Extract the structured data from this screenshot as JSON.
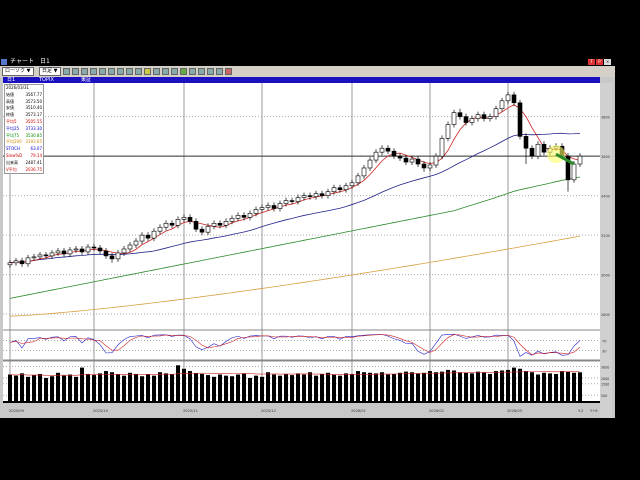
{
  "window": {
    "title": "チャート　日1",
    "close_labels": [
      "T",
      "P"
    ]
  },
  "toolbar": {
    "chart_type": "ローソク",
    "period": "日足"
  },
  "header": {
    "tab": "日1",
    "symbol": "TOPIX",
    "market": "東証"
  },
  "info_panel": {
    "date": "2026/03/31",
    "rows": [
      {
        "label": "始値",
        "value": "3567.77",
        "color": "#000000"
      },
      {
        "label": "高値",
        "value": "3573.50",
        "color": "#000000"
      },
      {
        "label": "安値",
        "value": "3510.40",
        "color": "#000000"
      },
      {
        "label": "終値",
        "value": "3573.17",
        "color": "#000000"
      },
      {
        "label": "平均5",
        "value": "3505.55",
        "color": "#cc0000"
      },
      {
        "label": "平均25",
        "value": "3733.30",
        "color": "#0000cc"
      },
      {
        "label": "平均75",
        "value": "3530.85",
        "color": "#008800"
      },
      {
        "label": "平均200",
        "value": "3193.65",
        "color": "#cc8800"
      },
      {
        "label": "STOCH",
        "value": "63.07",
        "color": "#0000cc"
      },
      {
        "label": "Slow%D",
        "value": "79.14",
        "color": "#cc0000"
      },
      {
        "label": "出来高",
        "value": "2487.41",
        "color": "#000000"
      },
      {
        "label": "V平均",
        "value": "2036.75",
        "color": "#cc0000"
      }
    ]
  },
  "chart_data": {
    "type": "candlestick",
    "price_ticks": [
      "3800",
      "3600",
      "3400",
      "3200",
      "3000",
      "2800"
    ],
    "price_range": [
      2730,
      3960
    ],
    "current_price_line": 3600,
    "stoch_ticks": [
      "70",
      "30"
    ],
    "volume_ticks": [
      "3000",
      "2000",
      "1500",
      "500"
    ],
    "x_labels": [
      "2025/09",
      "2025/10",
      "2025/11",
      "2025/12",
      "2026/01",
      "2026/02",
      "2026/03"
    ],
    "x_label_index": [
      0,
      14,
      29,
      42,
      57,
      70,
      83
    ],
    "right_labels": [
      "Y-2",
      "Y+6"
    ],
    "ma200_range": [
      2790,
      3195
    ],
    "ma75_start": 2880,
    "open": [
      3050,
      3060,
      3070,
      3055,
      3085,
      3090,
      3100,
      3095,
      3110,
      3120,
      3105,
      3125,
      3130,
      3115,
      3140,
      3135,
      3120,
      3095,
      3080,
      3110,
      3130,
      3150,
      3170,
      3200,
      3185,
      3220,
      3240,
      3260,
      3250,
      3280,
      3290,
      3270,
      3230,
      3215,
      3245,
      3260,
      3250,
      3270,
      3285,
      3300,
      3290,
      3310,
      3330,
      3340,
      3350,
      3335,
      3360,
      3375,
      3370,
      3390,
      3400,
      3395,
      3410,
      3400,
      3420,
      3440,
      3430,
      3450,
      3465,
      3500,
      3540,
      3580,
      3620,
      3640,
      3625,
      3600,
      3590,
      3570,
      3585,
      3560,
      3540,
      3555,
      3600,
      3690,
      3760,
      3820,
      3800,
      3770,
      3790,
      3810,
      3790,
      3800,
      3840,
      3880,
      3910,
      3870,
      3700,
      3640,
      3600,
      3660,
      3620,
      3640,
      3650,
      3600,
      3480,
      3560
    ],
    "high": [
      3075,
      3085,
      3085,
      3100,
      3105,
      3115,
      3115,
      3125,
      3135,
      3135,
      3140,
      3145,
      3145,
      3155,
      3155,
      3150,
      3135,
      3110,
      3125,
      3145,
      3165,
      3185,
      3215,
      3215,
      3235,
      3255,
      3275,
      3275,
      3295,
      3305,
      3305,
      3285,
      3245,
      3260,
      3275,
      3275,
      3285,
      3300,
      3315,
      3315,
      3325,
      3345,
      3355,
      3365,
      3365,
      3375,
      3390,
      3390,
      3405,
      3415,
      3415,
      3425,
      3425,
      3435,
      3455,
      3455,
      3465,
      3480,
      3515,
      3555,
      3595,
      3635,
      3655,
      3655,
      3640,
      3615,
      3605,
      3600,
      3600,
      3575,
      3570,
      3615,
      3705,
      3775,
      3835,
      3840,
      3815,
      3805,
      3825,
      3825,
      3815,
      3855,
      3895,
      3925,
      3925,
      3885,
      3715,
      3655,
      3675,
      3675,
      3655,
      3665,
      3665,
      3615,
      3575,
      3615
    ],
    "low": [
      3035,
      3045,
      3040,
      3040,
      3070,
      3075,
      3080,
      3080,
      3095,
      3090,
      3090,
      3110,
      3100,
      3100,
      3120,
      3105,
      3080,
      3060,
      3065,
      3095,
      3115,
      3135,
      3155,
      3170,
      3170,
      3205,
      3225,
      3235,
      3235,
      3265,
      3255,
      3215,
      3200,
      3200,
      3230,
      3235,
      3235,
      3255,
      3270,
      3275,
      3275,
      3295,
      3315,
      3325,
      3320,
      3320,
      3345,
      3355,
      3355,
      3375,
      3380,
      3380,
      3385,
      3385,
      3405,
      3415,
      3415,
      3435,
      3450,
      3485,
      3525,
      3565,
      3605,
      3610,
      3585,
      3575,
      3555,
      3555,
      3545,
      3520,
      3525,
      3540,
      3585,
      3675,
      3745,
      3785,
      3755,
      3755,
      3775,
      3775,
      3775,
      3785,
      3825,
      3865,
      3855,
      3685,
      3560,
      3585,
      3585,
      3605,
      3605,
      3625,
      3585,
      3420,
      3465,
      3545
    ],
    "close": [
      3060,
      3070,
      3055,
      3085,
      3090,
      3100,
      3095,
      3110,
      3120,
      3105,
      3125,
      3130,
      3115,
      3140,
      3135,
      3120,
      3095,
      3080,
      3110,
      3130,
      3150,
      3170,
      3200,
      3185,
      3220,
      3240,
      3260,
      3250,
      3280,
      3290,
      3270,
      3230,
      3215,
      3245,
      3260,
      3250,
      3270,
      3285,
      3300,
      3290,
      3310,
      3330,
      3340,
      3350,
      3335,
      3360,
      3375,
      3370,
      3390,
      3400,
      3395,
      3410,
      3400,
      3420,
      3440,
      3430,
      3450,
      3465,
      3500,
      3540,
      3580,
      3620,
      3640,
      3625,
      3600,
      3590,
      3570,
      3585,
      3560,
      3540,
      3555,
      3600,
      3690,
      3760,
      3820,
      3800,
      3770,
      3790,
      3810,
      3790,
      3800,
      3840,
      3880,
      3910,
      3870,
      3700,
      3640,
      3600,
      3660,
      3620,
      3640,
      3650,
      3600,
      3480,
      3560,
      3600
    ],
    "volume": [
      2300,
      2200,
      2400,
      2100,
      2250,
      2350,
      2000,
      2150,
      2450,
      2200,
      2300,
      2100,
      2900,
      2350,
      2250,
      2400,
      2600,
      2500,
      2300,
      2200,
      2450,
      2350,
      2150,
      2300,
      2200,
      2500,
      2400,
      2300,
      3100,
      2800,
      2600,
      2400,
      2350,
      2250,
      2100,
      2300,
      2200,
      2150,
      2300,
      2400,
      2000,
      2200,
      2100,
      2500,
      2300,
      2200,
      2350,
      2250,
      2400,
      2300,
      2500,
      2200,
      2350,
      2450,
      2300,
      2200,
      2400,
      2350,
      2600,
      2500,
      2450,
      2400,
      2500,
      2300,
      2350,
      2450,
      2550,
      2500,
      2400,
      2450,
      2600,
      2500,
      2550,
      2700,
      2650,
      2500,
      2450,
      2400,
      2550,
      2500,
      2350,
      2600,
      2650,
      2700,
      2900,
      2800,
      2600,
      2500,
      2300,
      2450,
      2400,
      2350,
      2600,
      2550,
      2450,
      2490
    ],
    "colors": {
      "ma5": "#cc2222",
      "ma25": "#22228a",
      "ma75": "#2a8a2a",
      "ma200": "#d8a040",
      "stoch": "#2222cc",
      "slowd": "#cc2222",
      "volume": "#000000"
    }
  }
}
